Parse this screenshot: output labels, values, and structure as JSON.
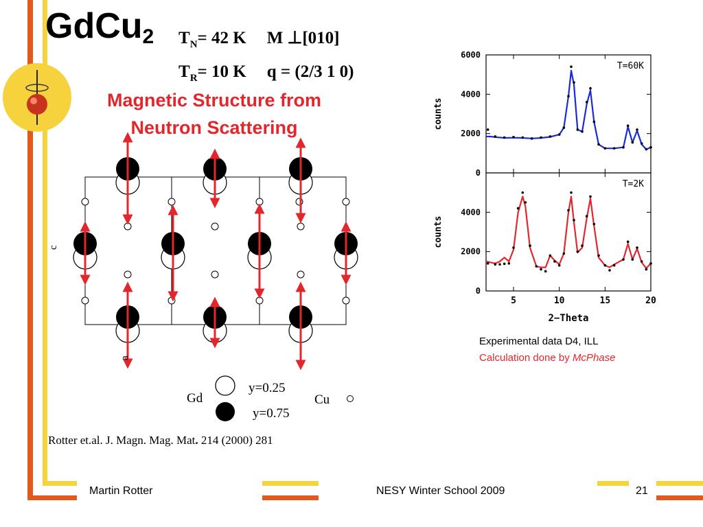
{
  "title": {
    "main": "GdCu",
    "sub": "2"
  },
  "params": {
    "line1": {
      "T": "T",
      "sub": "N",
      "rest": "= 42 K",
      "right": "M ⊥[010]"
    },
    "line2": {
      "T": "T",
      "sub": "R",
      "rest": "= 10 K",
      "right": "q = (2/3 1 0)"
    }
  },
  "subtitle": {
    "line1": "Magnetic Structure from",
    "line2": "Neutron Scattering"
  },
  "structure": {
    "axis_c": "c",
    "axis_a": "a",
    "legend": {
      "gd": "Gd",
      "cu": "Cu",
      "y_white": "y=0.25",
      "y_black": "y=0.75"
    }
  },
  "reference": {
    "text": "Rotter et.al. J. Magn. Mag. Mat",
    "dot": ".",
    "rest": " 214 (2000) 281"
  },
  "experiment": {
    "line1": "Experimental data D4, ILL",
    "line2_prefix": "Calculation done by ",
    "line2_italic": "McPhase"
  },
  "footer": {
    "author": "Martin Rotter",
    "event": "NESY Winter School 2009",
    "page": "21"
  },
  "colors": {
    "accent_red": "#e3262c",
    "accent_orange": "#e05a1f",
    "accent_yellow": "#f6d33c",
    "series_blue": "#1a2ad6",
    "series_red": "#e3262c"
  },
  "chart_data": [
    {
      "type": "line",
      "panel_label": "T=60K",
      "ylabel": "counts",
      "xlabel": "",
      "xlim": [
        2,
        20
      ],
      "ylim": [
        0,
        6000
      ],
      "yticks": [
        0,
        2000,
        4000,
        6000
      ],
      "x_ticks": [
        5,
        10,
        15,
        20
      ],
      "series": [
        {
          "role": "data",
          "color": "#000000",
          "style": "points",
          "x": [
            2.2,
            3,
            4,
            5,
            6,
            7,
            8,
            9,
            10,
            10.5,
            11,
            11.3,
            11.6,
            12,
            12.5,
            13,
            13.4,
            13.8,
            14.3,
            15,
            16,
            17,
            17.5,
            18,
            18.5,
            19,
            19.5,
            20
          ],
          "y": [
            2200,
            1850,
            1800,
            1820,
            1800,
            1750,
            1800,
            1850,
            1950,
            2300,
            3900,
            5400,
            4600,
            2200,
            2100,
            3600,
            4300,
            2600,
            1450,
            1250,
            1250,
            1300,
            2400,
            1550,
            2200,
            1500,
            1200,
            1300
          ]
        },
        {
          "role": "calculation",
          "color": "#1a2ad6",
          "style": "line",
          "x": [
            2,
            2.5,
            3,
            4,
            5,
            6,
            7,
            8,
            9,
            10,
            10.5,
            11,
            11.3,
            11.6,
            12,
            12.5,
            13,
            13.4,
            13.8,
            14.3,
            15,
            16,
            17,
            17.5,
            18,
            18.5,
            19,
            19.5,
            20
          ],
          "y": [
            1850,
            1850,
            1820,
            1780,
            1790,
            1780,
            1750,
            1780,
            1830,
            1950,
            2300,
            3900,
            5200,
            4500,
            2200,
            2100,
            3500,
            4200,
            2600,
            1450,
            1250,
            1250,
            1300,
            2350,
            1550,
            2150,
            1450,
            1200,
            1300
          ]
        }
      ]
    },
    {
      "type": "line",
      "panel_label": "T=2K",
      "ylabel": "counts",
      "xlabel": "2−Theta",
      "xlim": [
        2,
        20
      ],
      "ylim": [
        0,
        6000
      ],
      "yticks": [
        0,
        2000,
        4000
      ],
      "x_ticks": [
        5,
        10,
        15,
        20
      ],
      "series": [
        {
          "role": "data",
          "color": "#000000",
          "style": "points",
          "x": [
            2.2,
            3,
            3.5,
            4,
            4.5,
            5,
            5.5,
            6,
            6.3,
            6.8,
            7.5,
            8,
            8.5,
            9,
            9.5,
            10,
            10.5,
            11,
            11.3,
            11.6,
            12,
            12.5,
            13,
            13.4,
            13.8,
            14.3,
            15,
            15.5,
            16,
            17,
            17.5,
            18,
            18.5,
            19,
            19.5,
            20
          ],
          "y": [
            1400,
            1350,
            1350,
            1380,
            1400,
            2200,
            4200,
            5000,
            4500,
            2300,
            1250,
            1100,
            1000,
            1800,
            1500,
            1300,
            1900,
            4100,
            5000,
            3600,
            2000,
            2300,
            3800,
            4800,
            3400,
            1800,
            1300,
            1050,
            1300,
            1600,
            2500,
            1600,
            2200,
            1500,
            1100,
            1400
          ]
        },
        {
          "role": "calculation",
          "color": "#e3262c",
          "style": "line",
          "x": [
            2,
            2.5,
            3,
            3.5,
            4,
            4.5,
            5,
            5.5,
            6,
            6.3,
            6.8,
            7.5,
            8,
            8.5,
            9,
            9.5,
            10,
            10.5,
            11,
            11.3,
            11.6,
            12,
            12.5,
            13,
            13.4,
            13.8,
            14.3,
            15,
            15.5,
            16,
            17,
            17.5,
            18,
            18.5,
            19,
            19.5,
            20
          ],
          "y": [
            1500,
            1450,
            1400,
            1500,
            1700,
            1500,
            2100,
            4000,
            4800,
            4300,
            2200,
            1250,
            1200,
            1200,
            1800,
            1550,
            1350,
            1900,
            4000,
            4800,
            3500,
            1950,
            2200,
            3700,
            4700,
            3300,
            1700,
            1300,
            1200,
            1350,
            1600,
            2400,
            1600,
            2150,
            1450,
            1150,
            1400
          ]
        }
      ]
    }
  ]
}
